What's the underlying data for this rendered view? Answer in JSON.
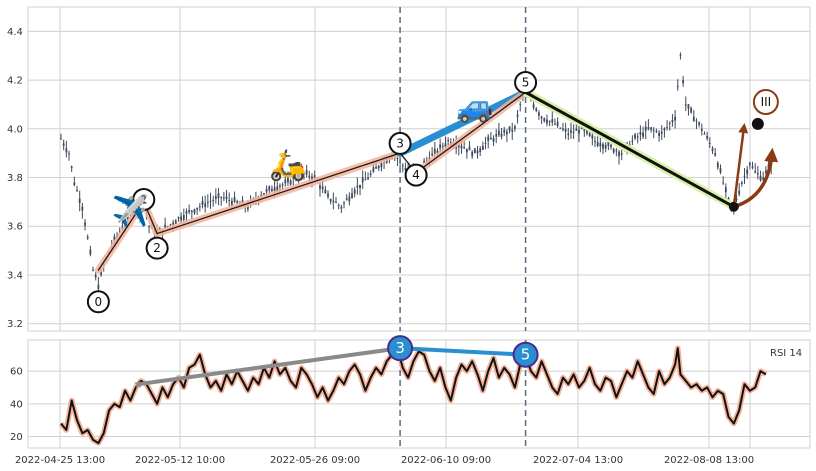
{
  "chart_data": {
    "type": "candlestick",
    "x_tick_labels": [
      "2022-04-25 13:00",
      "2022-05-12 10:00",
      "2022-05-26 09:00",
      "2022-06-10 09:00",
      "2022-07-04 13:00",
      "2022-08-08 13:00"
    ],
    "price_panel": {
      "ylim": [
        3.17,
        4.5
      ],
      "yticks": [
        "3.2",
        "3.4",
        "3.6",
        "3.8",
        "4.0",
        "4.2",
        "4.4"
      ],
      "grid": true,
      "close_path": [
        [
          0,
          3.96
        ],
        [
          3,
          3.9
        ],
        [
          5,
          3.78
        ],
        [
          8,
          3.68
        ],
        [
          10,
          3.55
        ],
        [
          12,
          3.42
        ],
        [
          14,
          3.36
        ],
        [
          16,
          3.44
        ],
        [
          19,
          3.52
        ],
        [
          22,
          3.58
        ],
        [
          25,
          3.63
        ],
        [
          28,
          3.68
        ],
        [
          31,
          3.7
        ],
        [
          33,
          3.6
        ],
        [
          36,
          3.57
        ],
        [
          40,
          3.6
        ],
        [
          45,
          3.64
        ],
        [
          50,
          3.67
        ],
        [
          55,
          3.7
        ],
        [
          60,
          3.72
        ],
        [
          65,
          3.7
        ],
        [
          70,
          3.68
        ],
        [
          75,
          3.73
        ],
        [
          80,
          3.76
        ],
        [
          85,
          3.78
        ],
        [
          90,
          3.82
        ],
        [
          95,
          3.8
        ],
        [
          100,
          3.72
        ],
        [
          105,
          3.68
        ],
        [
          110,
          3.75
        ],
        [
          115,
          3.8
        ],
        [
          120,
          3.86
        ],
        [
          125,
          3.9
        ],
        [
          127,
          3.86
        ],
        [
          130,
          3.83
        ],
        [
          133,
          3.82
        ],
        [
          136,
          3.86
        ],
        [
          140,
          3.9
        ],
        [
          145,
          3.95
        ],
        [
          150,
          3.93
        ],
        [
          155,
          3.9
        ],
        [
          160,
          3.95
        ],
        [
          165,
          3.98
        ],
        [
          170,
          4.0
        ],
        [
          172,
          4.1
        ],
        [
          174,
          4.18
        ],
        [
          177,
          4.1
        ],
        [
          180,
          4.05
        ],
        [
          185,
          4.02
        ],
        [
          190,
          3.98
        ],
        [
          195,
          4.0
        ],
        [
          200,
          3.95
        ],
        [
          205,
          3.93
        ],
        [
          210,
          3.9
        ],
        [
          215,
          3.96
        ],
        [
          220,
          4.0
        ],
        [
          225,
          3.98
        ],
        [
          230,
          4.05
        ],
        [
          232,
          4.3
        ],
        [
          234,
          4.1
        ],
        [
          237,
          4.05
        ],
        [
          240,
          4.0
        ],
        [
          245,
          3.9
        ],
        [
          250,
          3.7
        ],
        [
          252,
          3.68
        ],
        [
          255,
          3.78
        ],
        [
          258,
          3.86
        ],
        [
          260,
          3.82
        ],
        [
          263,
          3.8
        ],
        [
          266,
          3.86
        ]
      ],
      "wave_points": [
        {
          "label": "0",
          "x": 14,
          "y": 3.42
        },
        {
          "label": "1",
          "x": 31,
          "y": 3.7
        },
        {
          "label": "2",
          "x": 36,
          "y": 3.57
        },
        {
          "label": "3",
          "x": 127,
          "y": 3.9
        },
        {
          "label": "4",
          "x": 133,
          "y": 3.82
        },
        {
          "label": "5",
          "x": 174,
          "y": 4.15
        },
        {
          "label": "end",
          "x": 252,
          "y": 3.68
        },
        {
          "label": "target",
          "x": 258,
          "y": 4.02
        }
      ],
      "wave_labels": [
        {
          "text": "0",
          "x": 14,
          "y": 3.29
        },
        {
          "text": "1",
          "x": 31,
          "y": 3.71
        },
        {
          "text": "2",
          "x": 36,
          "y": 3.51
        },
        {
          "text": "3",
          "x": 127,
          "y": 3.94
        },
        {
          "text": "4",
          "x": 133,
          "y": 3.81
        },
        {
          "text": "5",
          "x": 174,
          "y": 4.19
        },
        {
          "text": "III",
          "x": 264,
          "y": 4.11
        }
      ],
      "emojis": [
        {
          "symbol": "✈️",
          "x": 26,
          "y": 3.66
        },
        {
          "symbol": "🛵",
          "x": 85,
          "y": 3.85
        },
        {
          "symbol": "🚙",
          "x": 155,
          "y": 4.09
        }
      ],
      "vertical_lines_x": [
        127,
        174
      ]
    },
    "rsi_panel": {
      "label": "RSI 14",
      "ylim": [
        13,
        79
      ],
      "yticks": [
        "20",
        "40",
        "60"
      ],
      "values": [
        [
          0,
          28
        ],
        [
          2,
          24
        ],
        [
          4,
          42
        ],
        [
          6,
          30
        ],
        [
          8,
          22
        ],
        [
          10,
          24
        ],
        [
          12,
          18
        ],
        [
          14,
          16
        ],
        [
          16,
          22
        ],
        [
          18,
          36
        ],
        [
          20,
          40
        ],
        [
          22,
          38
        ],
        [
          24,
          48
        ],
        [
          26,
          42
        ],
        [
          28,
          50
        ],
        [
          30,
          54
        ],
        [
          32,
          52
        ],
        [
          34,
          46
        ],
        [
          36,
          40
        ],
        [
          38,
          50
        ],
        [
          40,
          44
        ],
        [
          42,
          52
        ],
        [
          44,
          56
        ],
        [
          46,
          50
        ],
        [
          48,
          62
        ],
        [
          50,
          64
        ],
        [
          52,
          70
        ],
        [
          54,
          58
        ],
        [
          56,
          50
        ],
        [
          58,
          54
        ],
        [
          60,
          48
        ],
        [
          62,
          58
        ],
        [
          64,
          52
        ],
        [
          66,
          60
        ],
        [
          68,
          54
        ],
        [
          70,
          48
        ],
        [
          72,
          56
        ],
        [
          74,
          52
        ],
        [
          76,
          62
        ],
        [
          78,
          56
        ],
        [
          80,
          66
        ],
        [
          82,
          58
        ],
        [
          84,
          62
        ],
        [
          86,
          54
        ],
        [
          88,
          50
        ],
        [
          90,
          62
        ],
        [
          92,
          58
        ],
        [
          94,
          52
        ],
        [
          96,
          44
        ],
        [
          98,
          50
        ],
        [
          100,
          42
        ],
        [
          102,
          48
        ],
        [
          104,
          56
        ],
        [
          106,
          52
        ],
        [
          108,
          60
        ],
        [
          110,
          64
        ],
        [
          112,
          58
        ],
        [
          114,
          48
        ],
        [
          116,
          56
        ],
        [
          118,
          62
        ],
        [
          120,
          58
        ],
        [
          122,
          66
        ],
        [
          124,
          70
        ],
        [
          126,
          74
        ],
        [
          128,
          62
        ],
        [
          130,
          56
        ],
        [
          132,
          66
        ],
        [
          134,
          72
        ],
        [
          136,
          70
        ],
        [
          138,
          60
        ],
        [
          140,
          54
        ],
        [
          142,
          62
        ],
        [
          144,
          50
        ],
        [
          146,
          42
        ],
        [
          148,
          56
        ],
        [
          150,
          64
        ],
        [
          152,
          60
        ],
        [
          154,
          66
        ],
        [
          156,
          58
        ],
        [
          158,
          48
        ],
        [
          160,
          60
        ],
        [
          162,
          68
        ],
        [
          164,
          56
        ],
        [
          166,
          62
        ],
        [
          168,
          58
        ],
        [
          170,
          50
        ],
        [
          172,
          64
        ],
        [
          174,
          70
        ],
        [
          176,
          60
        ],
        [
          178,
          56
        ],
        [
          180,
          66
        ],
        [
          182,
          58
        ],
        [
          184,
          50
        ],
        [
          186,
          46
        ],
        [
          188,
          56
        ],
        [
          190,
          52
        ],
        [
          192,
          58
        ],
        [
          194,
          50
        ],
        [
          196,
          54
        ],
        [
          198,
          62
        ],
        [
          200,
          52
        ],
        [
          202,
          48
        ],
        [
          204,
          56
        ],
        [
          206,
          54
        ],
        [
          208,
          44
        ],
        [
          210,
          52
        ],
        [
          212,
          60
        ],
        [
          214,
          56
        ],
        [
          216,
          66
        ],
        [
          218,
          58
        ],
        [
          220,
          50
        ],
        [
          222,
          46
        ],
        [
          224,
          60
        ],
        [
          226,
          52
        ],
        [
          228,
          56
        ],
        [
          230,
          64
        ],
        [
          231,
          74
        ],
        [
          232,
          58
        ],
        [
          234,
          54
        ],
        [
          236,
          50
        ],
        [
          238,
          52
        ],
        [
          240,
          48
        ],
        [
          242,
          50
        ],
        [
          244,
          44
        ],
        [
          246,
          48
        ],
        [
          248,
          46
        ],
        [
          250,
          32
        ],
        [
          252,
          28
        ],
        [
          254,
          36
        ],
        [
          256,
          52
        ],
        [
          258,
          48
        ],
        [
          260,
          50
        ],
        [
          262,
          60
        ],
        [
          264,
          58
        ]
      ],
      "trend_lines": [
        {
          "from": [
            29,
            52
          ],
          "to": [
            127,
            74
          ],
          "color": "#8a8a8a"
        },
        {
          "from": [
            127,
            74
          ],
          "to": [
            174,
            70
          ],
          "color": "#2a8fd0"
        }
      ],
      "markers": [
        {
          "text": "3",
          "x": 127,
          "y": 74
        },
        {
          "text": "5",
          "x": 174,
          "y": 70
        }
      ]
    }
  }
}
